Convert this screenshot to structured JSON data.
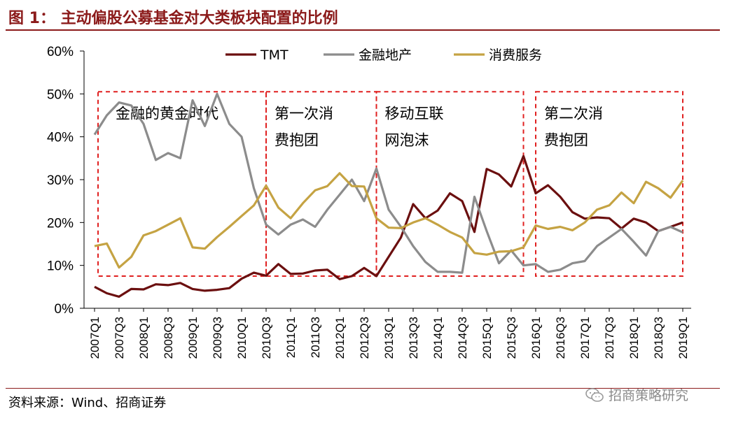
{
  "figure": {
    "title": "图 1：  主动偏股公募基金对大类板块配置的比例",
    "source": "资料来源：Wind、招商证券",
    "watermark": "招商策略研究",
    "watermark_icon": "wechat-icon"
  },
  "chart_data": {
    "type": "line",
    "title": "",
    "xlabel": "",
    "ylabel": "",
    "ylim": [
      0,
      60
    ],
    "y_ticks": [
      "0%",
      "10%",
      "20%",
      "30%",
      "40%",
      "50%",
      "60%"
    ],
    "grid": false,
    "legend_position": "top",
    "x": [
      "2007Q1",
      "2007Q2",
      "2007Q3",
      "2007Q4",
      "2008Q1",
      "2008Q2",
      "2008Q3",
      "2008Q4",
      "2009Q1",
      "2009Q2",
      "2009Q3",
      "2009Q4",
      "2010Q1",
      "2010Q2",
      "2010Q3",
      "2010Q4",
      "2011Q1",
      "2011Q2",
      "2011Q3",
      "2011Q4",
      "2012Q1",
      "2012Q2",
      "2012Q3",
      "2012Q4",
      "2013Q1",
      "2013Q2",
      "2013Q3",
      "2013Q4",
      "2014Q1",
      "2014Q2",
      "2014Q3",
      "2014Q4",
      "2015Q1",
      "2015Q2",
      "2015Q3",
      "2015Q4",
      "2016Q1",
      "2016Q2",
      "2016Q3",
      "2016Q4",
      "2017Q1",
      "2017Q2",
      "2017Q3",
      "2017Q4",
      "2018Q1",
      "2018Q2",
      "2018Q3",
      "2018Q4",
      "2019Q1"
    ],
    "x_tick_labels": [
      "2007Q1",
      "2007Q3",
      "2008Q1",
      "2008Q3",
      "2009Q1",
      "2009Q3",
      "2010Q1",
      "2010Q3",
      "2011Q1",
      "2011Q3",
      "2012Q1",
      "2012Q3",
      "2013Q1",
      "2013Q3",
      "2014Q1",
      "2014Q3",
      "2015Q1",
      "2015Q3",
      "2016Q1",
      "2016Q3",
      "2017Q1",
      "2017Q3",
      "2018Q1",
      "2018Q3",
      "2019Q1"
    ],
    "series": [
      {
        "name": "TMT",
        "color": "#6B0F0F",
        "values": [
          5.0,
          3.5,
          2.7,
          4.5,
          4.4,
          5.6,
          5.4,
          5.9,
          4.5,
          4.1,
          4.3,
          4.7,
          6.9,
          8.3,
          7.6,
          10.3,
          8.0,
          8.1,
          8.8,
          9.0,
          6.8,
          7.5,
          9.4,
          7.5,
          12.0,
          16.5,
          24.3,
          21.0,
          22.8,
          26.8,
          25.0,
          17.8,
          32.5,
          31.2,
          28.4,
          35.5,
          26.8,
          28.7,
          26.0,
          22.4,
          20.9,
          21.2,
          21.0,
          18.6,
          20.9,
          20.0,
          18.0,
          19.0,
          20.0
        ]
      },
      {
        "name": "金融地产",
        "color": "#8C8C8C",
        "values": [
          40.5,
          45.0,
          48.0,
          47.3,
          43.0,
          34.6,
          36.2,
          35.0,
          48.5,
          42.5,
          50.0,
          43.0,
          40.0,
          28.0,
          19.5,
          17.2,
          19.5,
          20.7,
          19.0,
          23.0,
          26.5,
          30.0,
          25.0,
          32.6,
          23.0,
          19.0,
          14.5,
          10.8,
          8.5,
          8.5,
          8.3,
          26.0,
          18.0,
          10.5,
          13.5,
          10.0,
          10.3,
          8.5,
          9.0,
          10.5,
          11.0,
          14.5,
          16.5,
          18.5,
          15.5,
          12.3,
          18.0,
          19.0,
          17.7
        ]
      },
      {
        "name": "消费服务",
        "color": "#C5A343",
        "values": [
          14.5,
          15.1,
          9.5,
          12.0,
          17.0,
          18.0,
          19.5,
          21.0,
          14.2,
          13.9,
          16.6,
          19.0,
          21.5,
          24.0,
          28.6,
          23.5,
          21.0,
          24.5,
          27.5,
          28.5,
          31.5,
          28.5,
          28.4,
          21.0,
          18.8,
          18.7,
          20.0,
          21.0,
          19.5,
          17.8,
          16.5,
          12.9,
          12.5,
          13.2,
          13.3,
          14.2,
          19.3,
          18.5,
          19.0,
          18.2,
          20.0,
          23.0,
          24.0,
          27.0,
          24.5,
          29.5,
          28.0,
          25.8,
          29.8
        ]
      }
    ],
    "annotations": [
      {
        "lines": [
          "金融的黄金时代"
        ],
        "box": [
          "2007Q1",
          "2010Q3"
        ]
      },
      {
        "lines": [
          "第一次消",
          "费抱团"
        ],
        "box": [
          "2010Q3",
          "2012Q4"
        ]
      },
      {
        "lines": [
          "移动互联",
          "网泡沫"
        ],
        "box": [
          "2012Q4",
          "2015Q4"
        ]
      },
      {
        "lines": [
          "第二次消",
          "费抱团"
        ],
        "box": [
          "2016Q1",
          "2019Q1"
        ]
      }
    ],
    "annotation_box_color": "#E02020"
  }
}
